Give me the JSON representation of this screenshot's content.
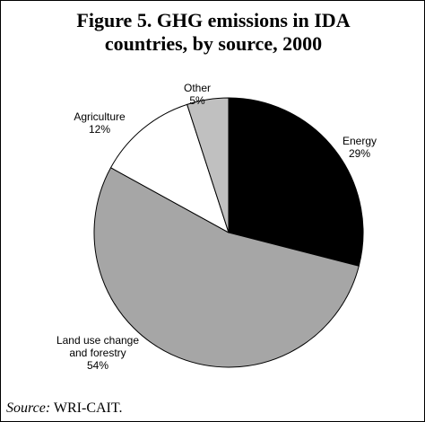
{
  "figure": {
    "title_line1": "Figure 5. GHG emissions in IDA",
    "title_line2": "countries, by source, 2000",
    "source_label": "Source:",
    "source_text": " WRI-CAIT."
  },
  "chart_data": {
    "type": "pie",
    "title": "Figure 5. GHG emissions in IDA countries, by source, 2000",
    "unit": "%",
    "start": "12 o'clock, clockwise",
    "slices": [
      {
        "label_lines": [
          "Energy"
        ],
        "value": 29,
        "value_label": "29%",
        "color": "#000000"
      },
      {
        "label_lines": [
          "Land use change",
          "and forestry"
        ],
        "value": 54,
        "value_label": "54%",
        "color": "#a6a6a6"
      },
      {
        "label_lines": [
          "Agriculture"
        ],
        "value": 12,
        "value_label": "12%",
        "color": "#ffffff"
      },
      {
        "label_lines": [
          "Other"
        ],
        "value": 5,
        "value_label": "5%",
        "color": "#c0c0c0"
      }
    ]
  }
}
